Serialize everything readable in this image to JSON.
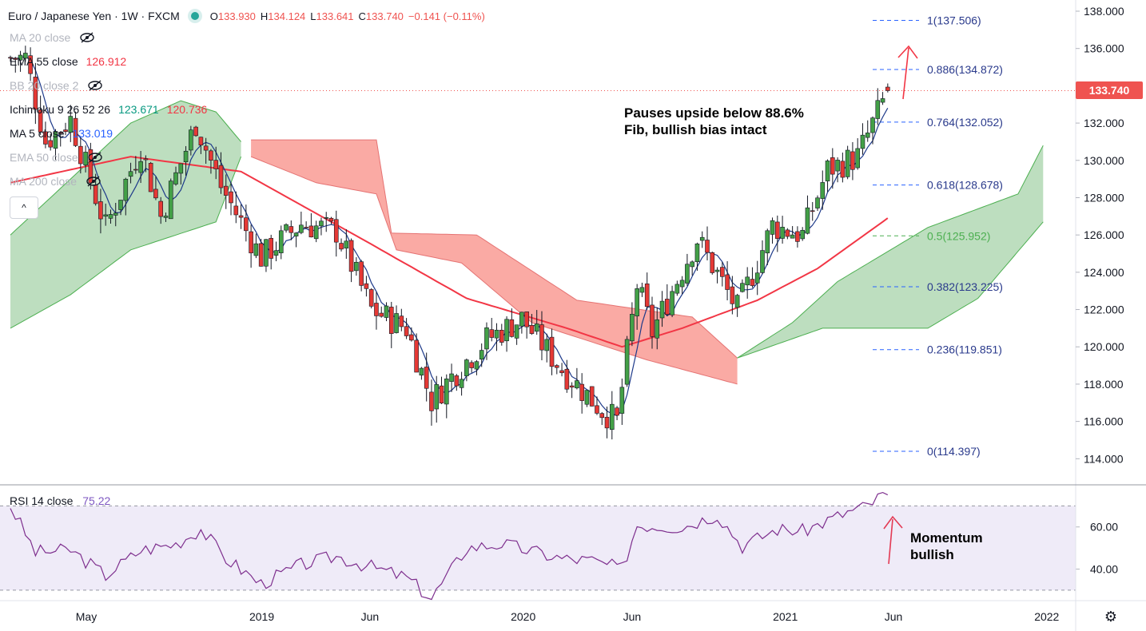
{
  "header": {
    "symbol": "Euro / Japanese Yen · 1W · FXCM",
    "ohlc": [
      {
        "k": "O",
        "v": "133.930"
      },
      {
        "k": "H",
        "v": "134.124"
      },
      {
        "k": "L",
        "v": "133.641"
      },
      {
        "k": "C",
        "v": "133.740"
      },
      {
        "k": "",
        "v": "−0.141 (−0.11%)"
      }
    ]
  },
  "indicators": [
    {
      "name": "MA 20 close",
      "value1": "",
      "value2": "",
      "color1": "#131722",
      "color2": "",
      "hidden": true
    },
    {
      "name": "EMA 55 close",
      "value1": "126.912",
      "value2": "",
      "color1": "#f23645",
      "color2": "",
      "hidden": false
    },
    {
      "name": "BB 20 close 2",
      "value1": "",
      "value2": "",
      "color1": "",
      "color2": "",
      "hidden": true
    },
    {
      "name": "Ichimoku 9 26 52 26",
      "value1": "123.671",
      "value2": "120.736",
      "color1": "#089981",
      "color2": "#f23645",
      "hidden": false
    },
    {
      "name": "MA 5 close",
      "value1": "133.019",
      "value2": "",
      "color1": "#2962ff",
      "color2": "",
      "hidden": false
    },
    {
      "name": "EMA 50 close",
      "value1": "",
      "value2": "",
      "color1": "",
      "color2": "",
      "hidden": true
    },
    {
      "name": "MA 200 close",
      "value1": "",
      "value2": "",
      "color1": "",
      "color2": "",
      "hidden": true
    }
  ],
  "collapse_label": "^",
  "annotations": {
    "main": [
      "Pauses upside below 88.6%",
      "Fib, bullish bias intact"
    ],
    "rsi": [
      "Momentum",
      "bullish"
    ]
  },
  "last_price": "133.740",
  "rsi_title": {
    "name": "RSI 14 close",
    "value": "75.22"
  },
  "settings_icon": "gear-icon",
  "chart_data": {
    "type": "candlestick",
    "symbol": "EURJPY",
    "timeframe": "1W",
    "y_axis": {
      "ticks": [
        "138.000",
        "136.000",
        "134.000",
        "132.000",
        "130.000",
        "128.000",
        "126.000",
        "124.000",
        "122.000",
        "120.000",
        "118.000",
        "116.000",
        "114.000"
      ],
      "ylim": [
        112.6,
        138.6
      ]
    },
    "x_axis": {
      "ticks": [
        {
          "label": "May",
          "date": "2018-05-01"
        },
        {
          "label": "2019",
          "date": "2019-01-01"
        },
        {
          "label": "Jun",
          "date": "2019-06-01"
        },
        {
          "label": "2020",
          "date": "2020-01-01"
        },
        {
          "label": "Jun",
          "date": "2020-06-01"
        },
        {
          "label": "2021",
          "date": "2021-01-01"
        },
        {
          "label": "Jun",
          "date": "2021-06-01"
        },
        {
          "label": "2022",
          "date": "2022-01-01"
        }
      ]
    },
    "fib_levels": [
      {
        "ratio": "1",
        "price": "137.506"
      },
      {
        "ratio": "0.886",
        "price": "134.872"
      },
      {
        "ratio": "0.764",
        "price": "132.052"
      },
      {
        "ratio": "0.618",
        "price": "128.678"
      },
      {
        "ratio": "0.5",
        "price": "125.952"
      },
      {
        "ratio": "0.382",
        "price": "123.225"
      },
      {
        "ratio": "0.236",
        "price": "119.851"
      },
      {
        "ratio": "0",
        "price": "114.397"
      }
    ],
    "closes_weekly_anchors": [
      {
        "date": "2018-02-05",
        "close": 135.5
      },
      {
        "date": "2018-03-05",
        "close": 131.0
      },
      {
        "date": "2018-04-09",
        "close": 132.2
      },
      {
        "date": "2018-05-28",
        "close": 126.4
      },
      {
        "date": "2018-07-16",
        "close": 130.7
      },
      {
        "date": "2018-08-13",
        "close": 127.0
      },
      {
        "date": "2018-10-01",
        "close": 132.0
      },
      {
        "date": "2018-11-05",
        "close": 128.6
      },
      {
        "date": "2018-12-31",
        "close": 124.8
      },
      {
        "date": "2019-02-25",
        "close": 126.6
      },
      {
        "date": "2019-04-15",
        "close": 126.2
      },
      {
        "date": "2019-06-03",
        "close": 122.0
      },
      {
        "date": "2019-07-22",
        "close": 121.0
      },
      {
        "date": "2019-08-26",
        "close": 117.1
      },
      {
        "date": "2019-09-23",
        "close": 118.4
      },
      {
        "date": "2019-11-11",
        "close": 120.4
      },
      {
        "date": "2019-12-30",
        "close": 121.5
      },
      {
        "date": "2020-02-24",
        "close": 118.8
      },
      {
        "date": "2020-04-20",
        "close": 116.6
      },
      {
        "date": "2020-05-11",
        "close": 116.0
      },
      {
        "date": "2020-06-08",
        "close": 123.3
      },
      {
        "date": "2020-06-29",
        "close": 120.8
      },
      {
        "date": "2020-08-31",
        "close": 125.8
      },
      {
        "date": "2020-10-26",
        "close": 122.0
      },
      {
        "date": "2020-12-14",
        "close": 126.5
      },
      {
        "date": "2021-01-25",
        "close": 126.0
      },
      {
        "date": "2021-03-01",
        "close": 129.5
      },
      {
        "date": "2021-04-12",
        "close": 130.2
      },
      {
        "date": "2021-05-24",
        "close": 133.7
      }
    ],
    "ema55_anchors": [
      {
        "date": "2018-01-15",
        "value": 128.8
      },
      {
        "date": "2018-07-02",
        "value": 130.2
      },
      {
        "date": "2018-12-03",
        "value": 129.4
      },
      {
        "date": "2019-06-03",
        "value": 125.5
      },
      {
        "date": "2019-10-14",
        "value": 122.6
      },
      {
        "date": "2020-03-02",
        "value": 121.0
      },
      {
        "date": "2020-05-18",
        "value": 120.0
      },
      {
        "date": "2020-08-10",
        "value": 121.0
      },
      {
        "date": "2020-11-23",
        "value": 122.5
      },
      {
        "date": "2021-02-15",
        "value": 124.2
      },
      {
        "date": "2021-05-24",
        "value": 126.9
      },
      {
        "date": "2021-05-31",
        "value": 126.9
      }
    ],
    "kumo_green_top_anchors": [
      {
        "date": "2018-01-15",
        "value": 126.0
      },
      {
        "date": "2018-04-09",
        "value": 129.0
      },
      {
        "date": "2018-07-02",
        "value": 132.0
      },
      {
        "date": "2018-09-10",
        "value": 133.2
      },
      {
        "date": "2018-10-29",
        "value": 132.6
      },
      {
        "date": "2018-12-03",
        "value": 131.0
      }
    ],
    "kumo_green_bottom_anchors": [
      {
        "date": "2018-01-15",
        "value": 121.0
      },
      {
        "date": "2018-04-09",
        "value": 122.8
      },
      {
        "date": "2018-07-02",
        "value": 125.2
      },
      {
        "date": "2018-10-29",
        "value": 126.7
      },
      {
        "date": "2018-12-03",
        "value": 130.2
      }
    ],
    "kumo_red_top_anchors": [
      {
        "date": "2018-12-17",
        "value": 131.1
      },
      {
        "date": "2019-06-10",
        "value": 131.1
      },
      {
        "date": "2019-07-01",
        "value": 126.1
      },
      {
        "date": "2019-10-28",
        "value": 126.0
      },
      {
        "date": "2020-03-16",
        "value": 122.5
      },
      {
        "date": "2020-08-24",
        "value": 121.6
      },
      {
        "date": "2020-10-26",
        "value": 119.4
      }
    ],
    "kumo_red_bottom_anchors": [
      {
        "date": "2018-12-17",
        "value": 130.2
      },
      {
        "date": "2019-03-18",
        "value": 128.8
      },
      {
        "date": "2019-06-10",
        "value": 128.2
      },
      {
        "date": "2019-07-08",
        "value": 125.2
      },
      {
        "date": "2019-10-07",
        "value": 124.5
      },
      {
        "date": "2020-01-13",
        "value": 121.3
      },
      {
        "date": "2020-06-22",
        "value": 119.3
      },
      {
        "date": "2020-10-26",
        "value": 118.0
      }
    ],
    "kumo_green2_top_anchors": [
      {
        "date": "2020-10-26",
        "value": 119.4
      },
      {
        "date": "2021-01-11",
        "value": 121.3
      },
      {
        "date": "2021-03-15",
        "value": 123.5
      },
      {
        "date": "2021-07-19",
        "value": 126.4
      },
      {
        "date": "2021-11-22",
        "value": 128.2
      },
      {
        "date": "2021-12-27",
        "value": 130.8
      }
    ],
    "kumo_green2_bottom_anchors": [
      {
        "date": "2020-10-26",
        "value": 119.4
      },
      {
        "date": "2021-02-22",
        "value": 121.0
      },
      {
        "date": "2021-07-19",
        "value": 121.0
      },
      {
        "date": "2021-09-27",
        "value": 122.6
      },
      {
        "date": "2021-12-27",
        "value": 126.7
      }
    ],
    "rsi": {
      "title": "RSI 14 close",
      "last": 75.22,
      "ticks": [
        "60.00",
        "40.00"
      ],
      "bands": [
        70,
        30
      ],
      "ylim": [
        25,
        80
      ],
      "anchors": [
        {
          "date": "2018-01-15",
          "value": 70
        },
        {
          "date": "2018-02-19",
          "value": 48
        },
        {
          "date": "2018-04-09",
          "value": 49
        },
        {
          "date": "2018-05-28",
          "value": 37
        },
        {
          "date": "2018-07-16",
          "value": 49
        },
        {
          "date": "2018-09-03",
          "value": 52
        },
        {
          "date": "2018-10-08",
          "value": 59
        },
        {
          "date": "2018-11-12",
          "value": 45
        },
        {
          "date": "2018-12-31",
          "value": 33
        },
        {
          "date": "2019-02-25",
          "value": 42
        },
        {
          "date": "2019-04-15",
          "value": 46
        },
        {
          "date": "2019-06-03",
          "value": 41
        },
        {
          "date": "2019-07-22",
          "value": 36
        },
        {
          "date": "2019-08-26",
          "value": 26
        },
        {
          "date": "2019-10-14",
          "value": 50
        },
        {
          "date": "2019-12-02",
          "value": 52
        },
        {
          "date": "2020-02-24",
          "value": 45
        },
        {
          "date": "2020-04-06",
          "value": 44
        },
        {
          "date": "2020-05-18",
          "value": 40
        },
        {
          "date": "2020-06-08",
          "value": 61
        },
        {
          "date": "2020-08-10",
          "value": 60
        },
        {
          "date": "2020-09-28",
          "value": 66
        },
        {
          "date": "2020-11-02",
          "value": 51
        },
        {
          "date": "2020-12-21",
          "value": 59
        },
        {
          "date": "2021-01-25",
          "value": 58
        },
        {
          "date": "2021-03-29",
          "value": 67
        },
        {
          "date": "2021-04-26",
          "value": 70
        },
        {
          "date": "2021-05-24",
          "value": 77
        }
      ]
    }
  }
}
